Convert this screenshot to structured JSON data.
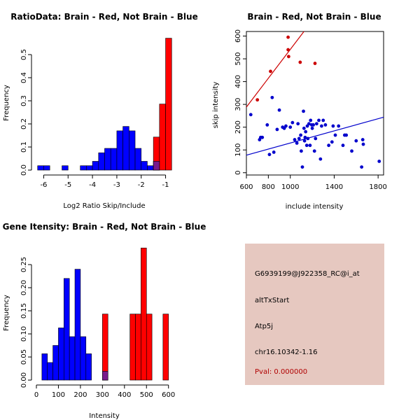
{
  "colors": {
    "red": "#ff0000",
    "blue": "#0000ff",
    "overlap": "#7a1a8c",
    "point_red": "#cc0000",
    "point_blue": "#0000cc",
    "panel": "#e6c8c0",
    "pval": "#b00000"
  },
  "chart_data": [
    {
      "type": "bar",
      "title": "RatioData: Brain - Red, Not Brain - Blue",
      "xlabel": "Log2 Ratio Skip/Include",
      "ylabel": "Frequency",
      "xlim": [
        -6.3,
        -0.7
      ],
      "ylim": [
        0,
        0.6
      ],
      "xticks": [
        -6,
        -5,
        -4,
        -3,
        -2,
        -1
      ],
      "yticks": [
        0.0,
        0.1,
        0.2,
        0.3,
        0.4,
        0.5
      ],
      "ytick_labels": [
        "0.0",
        "0.1",
        "0.2",
        "0.3",
        "0.4",
        "0.5"
      ],
      "bin_width": 0.25,
      "blue_bins": [
        {
          "x0": -6.25,
          "v": 0.019
        },
        {
          "x0": -6.0,
          "v": 0.019
        },
        {
          "x0": -5.25,
          "v": 0.019
        },
        {
          "x0": -4.5,
          "v": 0.019
        },
        {
          "x0": -4.25,
          "v": 0.019
        },
        {
          "x0": -4.0,
          "v": 0.038
        },
        {
          "x0": -3.75,
          "v": 0.075
        },
        {
          "x0": -3.5,
          "v": 0.094
        },
        {
          "x0": -3.25,
          "v": 0.094
        },
        {
          "x0": -3.0,
          "v": 0.17
        },
        {
          "x0": -2.75,
          "v": 0.189
        },
        {
          "x0": -2.5,
          "v": 0.17
        },
        {
          "x0": -2.25,
          "v": 0.094
        },
        {
          "x0": -2.0,
          "v": 0.038
        },
        {
          "x0": -1.75,
          "v": 0.019
        },
        {
          "x0": -1.5,
          "v": 0.038
        }
      ],
      "red_bins": [
        {
          "x0": -1.5,
          "v": 0.143
        },
        {
          "x0": -1.25,
          "v": 0.286
        },
        {
          "x0": -1.0,
          "v": 0.571
        }
      ],
      "overlap_bins": [
        {
          "x0": -1.5,
          "v": 0.038
        }
      ]
    },
    {
      "type": "scatter",
      "title": "Brain - Red, Not Brain - Blue",
      "xlabel": "include intensity",
      "ylabel": "skip intensity",
      "xlim": [
        600,
        1850
      ],
      "ylim": [
        -10,
        620
      ],
      "xticks": [
        600,
        800,
        1000,
        1400,
        1800
      ],
      "yticks": [
        0,
        100,
        200,
        300,
        400,
        500,
        600
      ],
      "red_points": [
        [
          700,
          320
        ],
        [
          820,
          445
        ],
        [
          980,
          595
        ],
        [
          980,
          540
        ],
        [
          985,
          510
        ],
        [
          1090,
          485
        ],
        [
          1225,
          480
        ]
      ],
      "blue_points": [
        [
          640,
          255
        ],
        [
          720,
          145
        ],
        [
          730,
          155
        ],
        [
          745,
          155
        ],
        [
          790,
          210
        ],
        [
          810,
          80
        ],
        [
          835,
          330
        ],
        [
          850,
          90
        ],
        [
          880,
          190
        ],
        [
          900,
          275
        ],
        [
          930,
          200
        ],
        [
          945,
          195
        ],
        [
          960,
          205
        ],
        [
          1000,
          200
        ],
        [
          1020,
          220
        ],
        [
          1040,
          145
        ],
        [
          1060,
          130
        ],
        [
          1070,
          215
        ],
        [
          1080,
          150
        ],
        [
          1095,
          165
        ],
        [
          1100,
          95
        ],
        [
          1110,
          25
        ],
        [
          1120,
          270
        ],
        [
          1125,
          195
        ],
        [
          1130,
          140
        ],
        [
          1135,
          155
        ],
        [
          1140,
          180
        ],
        [
          1150,
          120
        ],
        [
          1155,
          205
        ],
        [
          1160,
          150
        ],
        [
          1170,
          215
        ],
        [
          1180,
          120
        ],
        [
          1185,
          230
        ],
        [
          1195,
          210
        ],
        [
          1200,
          195
        ],
        [
          1210,
          210
        ],
        [
          1220,
          95
        ],
        [
          1230,
          150
        ],
        [
          1240,
          215
        ],
        [
          1260,
          230
        ],
        [
          1275,
          60
        ],
        [
          1285,
          205
        ],
        [
          1300,
          230
        ],
        [
          1320,
          210
        ],
        [
          1350,
          120
        ],
        [
          1380,
          135
        ],
        [
          1390,
          205
        ],
        [
          1410,
          165
        ],
        [
          1440,
          205
        ],
        [
          1480,
          120
        ],
        [
          1495,
          165
        ],
        [
          1510,
          165
        ],
        [
          1560,
          95
        ],
        [
          1600,
          140
        ],
        [
          1650,
          25
        ],
        [
          1660,
          145
        ],
        [
          1665,
          125
        ],
        [
          1810,
          50
        ]
      ],
      "red_fit": {
        "intercept": -91.6,
        "slope": 0.633
      },
      "blue_fit": {
        "intercept": -3.0,
        "slope": 0.1333
      }
    },
    {
      "type": "bar",
      "title": "Gene Itensity: Brain - Red, Not Brain - Blue",
      "xlabel": "Intensity",
      "ylabel": "Frequency",
      "xlim": [
        0,
        620
      ],
      "ylim": [
        0,
        0.3
      ],
      "xticks": [
        0,
        100,
        200,
        300,
        400,
        500,
        600
      ],
      "yticks": [
        0.0,
        0.05,
        0.1,
        0.15,
        0.2,
        0.25
      ],
      "ytick_labels": [
        "0.00",
        "0.05",
        "0.10",
        "0.15",
        "0.20",
        "0.25"
      ],
      "bin_width": 25,
      "blue_bins": [
        {
          "x0": 25,
          "v": 0.057
        },
        {
          "x0": 50,
          "v": 0.038
        },
        {
          "x0": 75,
          "v": 0.075
        },
        {
          "x0": 100,
          "v": 0.113
        },
        {
          "x0": 125,
          "v": 0.22
        },
        {
          "x0": 150,
          "v": 0.094
        },
        {
          "x0": 175,
          "v": 0.24
        },
        {
          "x0": 200,
          "v": 0.094
        },
        {
          "x0": 225,
          "v": 0.057
        },
        {
          "x0": 300,
          "v": 0.019
        }
      ],
      "red_bins": [
        {
          "x0": 300,
          "v": 0.143
        },
        {
          "x0": 425,
          "v": 0.143
        },
        {
          "x0": 450,
          "v": 0.143
        },
        {
          "x0": 475,
          "v": 0.286
        },
        {
          "x0": 500,
          "v": 0.143
        },
        {
          "x0": 575,
          "v": 0.143
        }
      ],
      "overlap_bins": [
        {
          "x0": 300,
          "v": 0.019
        }
      ]
    }
  ],
  "info": {
    "probe_id": "G6939199@J922358_RC@i_at",
    "event": "altTxStart",
    "gene": "Atp5j",
    "location": "chr16.10342-1.16",
    "pval": "Pval: 0.000000"
  }
}
